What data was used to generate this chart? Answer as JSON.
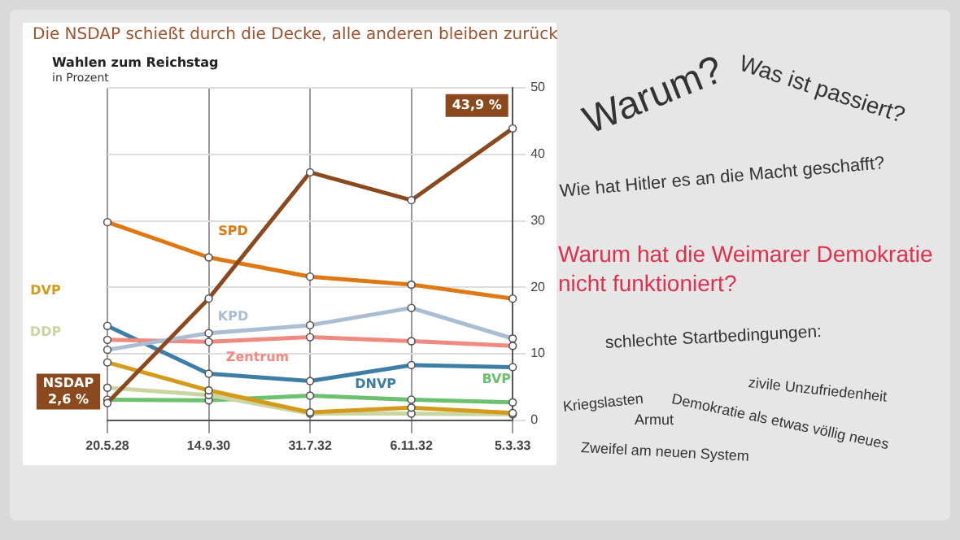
{
  "chart_data": {
    "type": "line",
    "title": "Die NSDAP schießt durch die Decke, alle anderen bleiben zurück",
    "subtitle": "Wahlen zum Reichstag",
    "ylabel": "in Prozent",
    "categories": [
      "20.5.28",
      "14.9.30",
      "31.7.32",
      "6.11.32",
      "5.3.33"
    ],
    "series": [
      {
        "name": "NSDAP",
        "color": "#8b4a1e",
        "values": [
          2.6,
          18.3,
          37.3,
          33.1,
          43.9
        ],
        "value_labels": [
          "2,6 %",
          null,
          null,
          null,
          "43,9 %"
        ]
      },
      {
        "name": "SPD",
        "color": "#e07812",
        "values": [
          29.8,
          24.5,
          21.6,
          20.4,
          18.3
        ]
      },
      {
        "name": "KPD",
        "color": "#aabdd2",
        "values": [
          10.6,
          13.1,
          14.3,
          16.9,
          12.3
        ]
      },
      {
        "name": "Zentrum",
        "color": "#f08a80",
        "values": [
          12.1,
          11.8,
          12.5,
          11.9,
          11.2
        ]
      },
      {
        "name": "DNVP",
        "color": "#3d7ea6",
        "values": [
          14.2,
          7.0,
          5.9,
          8.3,
          8.0
        ]
      },
      {
        "name": "DVP",
        "color": "#d49a1a",
        "values": [
          8.7,
          4.5,
          1.2,
          1.9,
          1.1
        ]
      },
      {
        "name": "DDP",
        "color": "#c9d6a2",
        "values": [
          4.9,
          3.8,
          1.0,
          1.0,
          0.9
        ]
      },
      {
        "name": "BVP",
        "color": "#6cc070",
        "values": [
          3.1,
          3.0,
          3.7,
          3.1,
          2.7
        ]
      }
    ],
    "ylim": [
      0,
      50
    ],
    "yticks": [
      0,
      10,
      20,
      30,
      40,
      50
    ],
    "grid": true,
    "legend": false,
    "marker": "circle",
    "line_style": "solid",
    "annotations": [
      "Warum?",
      "Was ist passiert?",
      "Wie hat Hitler es an die Macht geschafft?",
      "Warum hat die Weimarer Demokratie nicht funktioniert?",
      "schlechte Startbedingungen:",
      "zivile Unzufriedenheit",
      "Kriegslasten",
      "Demokratie als etwas völlig neues",
      "Armut",
      "Zweifel am neuen System"
    ]
  }
}
